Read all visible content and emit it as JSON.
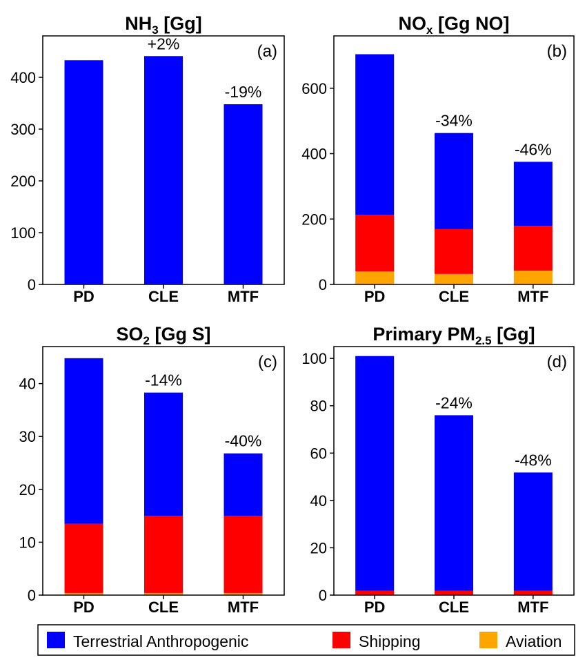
{
  "colors": {
    "terrestrial": "#0000ff",
    "shipping": "#ff0000",
    "aviation": "#ffa500",
    "axis": "#000000",
    "background": "#ffffff"
  },
  "legend": {
    "placement": "bottom",
    "items": [
      {
        "label": "Terrestrial Anthropogenic",
        "color": "#0000ff"
      },
      {
        "label": "Shipping",
        "color": "#ff0000"
      },
      {
        "label": "Aviation",
        "color": "#ffa500"
      }
    ]
  },
  "chart_data": [
    {
      "type": "bar",
      "stacked": true,
      "panel_label": "(a)",
      "title_main": "NH",
      "title_sub": "3",
      "title_rest": " [Gg]",
      "categories": [
        "PD",
        "CLE",
        "MTF"
      ],
      "series": [
        {
          "name": "Terrestrial Anthropogenic",
          "values": [
            433,
            441,
            348
          ]
        }
      ],
      "annotations": [
        "",
        "+2%",
        "-19%"
      ],
      "ylim": [
        0,
        480
      ],
      "yticks": [
        0,
        100,
        200,
        300,
        400
      ]
    },
    {
      "type": "bar",
      "stacked": true,
      "panel_label": "(b)",
      "title_main": "NO",
      "title_sub": "x",
      "title_rest": " [Gg NO]",
      "categories": [
        "PD",
        "CLE",
        "MTF"
      ],
      "series": [
        {
          "name": "Aviation",
          "values": [
            40,
            32,
            42
          ]
        },
        {
          "name": "Shipping",
          "values": [
            173,
            137,
            137
          ]
        },
        {
          "name": "Terrestrial Anthropogenic",
          "values": [
            491,
            294,
            196
          ]
        }
      ],
      "annotations": [
        "",
        "-34%",
        "-46%"
      ],
      "ylim": [
        0,
        760
      ],
      "yticks": [
        0,
        200,
        400,
        600
      ]
    },
    {
      "type": "bar",
      "stacked": true,
      "panel_label": "(c)",
      "title_main": "SO",
      "title_sub": "2",
      "title_rest": " [Gg S]",
      "categories": [
        "PD",
        "CLE",
        "MTF"
      ],
      "series": [
        {
          "name": "Aviation",
          "values": [
            0.4,
            0.4,
            0.4
          ]
        },
        {
          "name": "Shipping",
          "values": [
            13.1,
            14.6,
            14.6
          ]
        },
        {
          "name": "Terrestrial Anthropogenic",
          "values": [
            31.3,
            23.3,
            11.8
          ]
        }
      ],
      "annotations": [
        "",
        "-14%",
        "-40%"
      ],
      "ylim": [
        0,
        47
      ],
      "yticks": [
        0,
        10,
        20,
        30,
        40
      ]
    },
    {
      "type": "bar",
      "stacked": true,
      "panel_label": "(d)",
      "title_main": "Primary PM",
      "title_sub": "2.5",
      "title_rest": " [Gg]",
      "categories": [
        "PD",
        "CLE",
        "MTF"
      ],
      "series": [
        {
          "name": "Shipping",
          "values": [
            1.8,
            1.8,
            1.8
          ]
        },
        {
          "name": "Terrestrial Anthropogenic",
          "values": [
            99.2,
            74.2,
            50
          ]
        }
      ],
      "annotations": [
        "",
        "-24%",
        "-48%"
      ],
      "ylim": [
        0,
        105
      ],
      "yticks": [
        0,
        20,
        40,
        60,
        80,
        100
      ]
    }
  ]
}
